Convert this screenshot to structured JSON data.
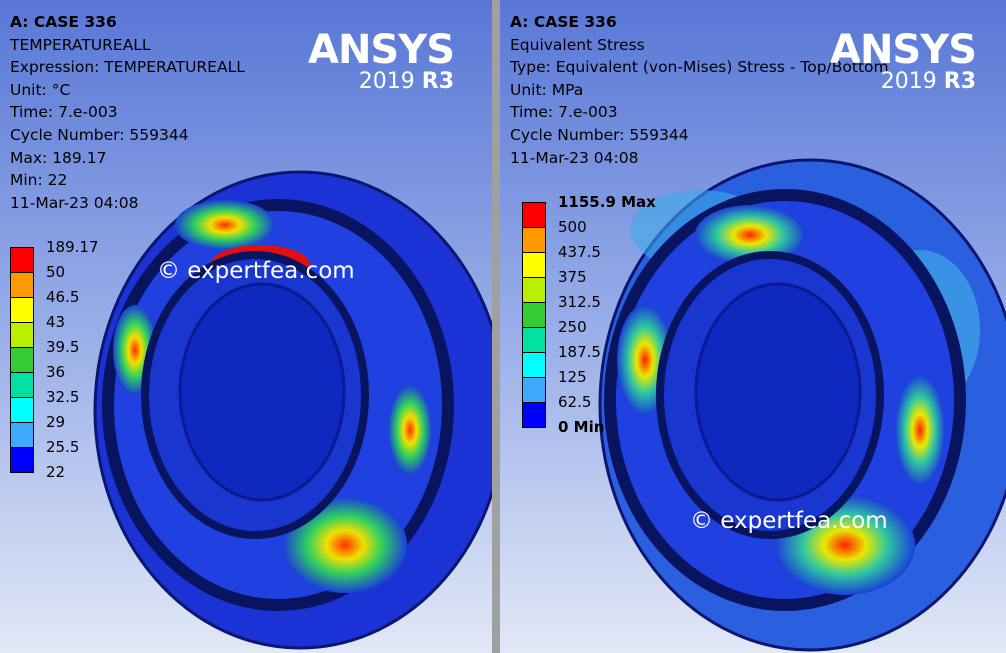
{
  "panels": [
    {
      "header": [
        "A: CASE 336",
        "TEMPERATUREALL",
        "Expression: TEMPERATUREALL",
        "Unit: °C",
        "Time: 7.e-003",
        "Cycle Number: 559344",
        "Max: 189.17",
        "Min: 22",
        "11-Mar-23 04:08"
      ],
      "legend": {
        "labels": [
          "189.17",
          "50",
          "46.5",
          "43",
          "39.5",
          "36",
          "32.5",
          "29",
          "25.5",
          "22"
        ],
        "colors": [
          "#ff0000",
          "#ff9900",
          "#ffff00",
          "#b8f000",
          "#33cc33",
          "#00e0a0",
          "#00ffff",
          "#3fa8ff",
          "#0000ff"
        ]
      },
      "logo": {
        "brand": "ANSYS",
        "year": "2019",
        "release": "R3"
      },
      "watermark": "© expertfea.com"
    },
    {
      "header": [
        "A: CASE 336",
        "Equivalent Stress",
        "Type: Equivalent (von-Mises) Stress - Top/Bottom",
        "Unit: MPa",
        "Time: 7.e-003",
        "Cycle Number: 559344",
        "11-Mar-23 04:08"
      ],
      "legend": {
        "labels": [
          "1155.9 Max",
          "500",
          "437.5",
          "375",
          "312.5",
          "250",
          "187.5",
          "125",
          "62.5",
          "0 Min"
        ],
        "colors": [
          "#ff0000",
          "#ff9900",
          "#ffff00",
          "#b8f000",
          "#33cc33",
          "#00e0a0",
          "#00ffff",
          "#3fa8ff",
          "#0000ff"
        ]
      },
      "logo": {
        "brand": "ANSYS",
        "year": "2019",
        "release": "R3"
      },
      "watermark": "© expertfea.com"
    }
  ]
}
